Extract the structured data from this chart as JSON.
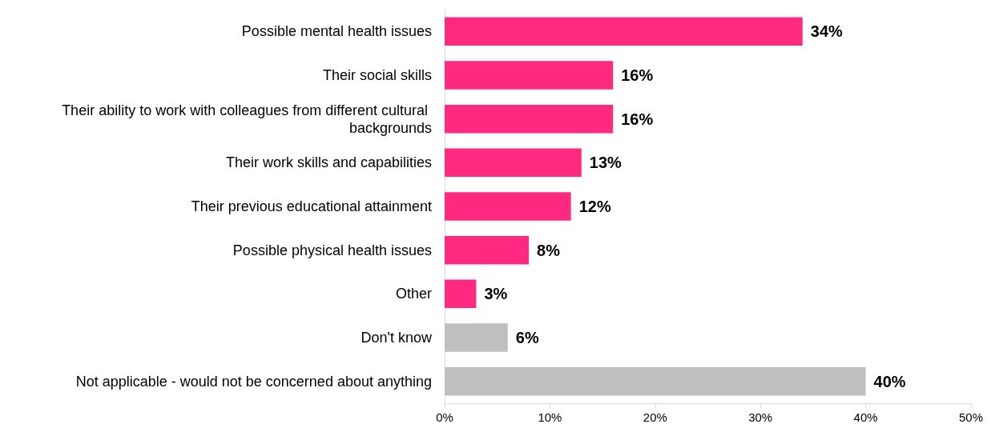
{
  "chart_data": {
    "type": "bar",
    "orientation": "horizontal",
    "categories": [
      "Possible mental health issues",
      "Their social skills",
      "Their ability to work with colleagues from different cultural backgrounds",
      "Their work skills and capabilities",
      "Their previous educational attainment",
      "Possible physical health issues",
      "Other",
      "Don't know",
      "Not applicable - would not be concerned about anything"
    ],
    "values": [
      34,
      16,
      16,
      13,
      12,
      8,
      3,
      6,
      40
    ],
    "colors": [
      "#ff2a7f",
      "#ff2a7f",
      "#ff2a7f",
      "#ff2a7f",
      "#ff2a7f",
      "#ff2a7f",
      "#ff2a7f",
      "#bfbfbf",
      "#bfbfbf"
    ],
    "value_labels": [
      "34%",
      "16%",
      "16%",
      "13%",
      "12%",
      "8%",
      "3%",
      "6%",
      "40%"
    ],
    "xlim": [
      0,
      50
    ],
    "xticks": [
      {
        "value": 0,
        "label": "0%"
      },
      {
        "value": 10,
        "label": "10%"
      },
      {
        "value": 20,
        "label": "20%"
      },
      {
        "value": 30,
        "label": "30%"
      },
      {
        "value": 40,
        "label": "40%"
      },
      {
        "value": 50,
        "label": "50%"
      }
    ],
    "grid": false
  }
}
